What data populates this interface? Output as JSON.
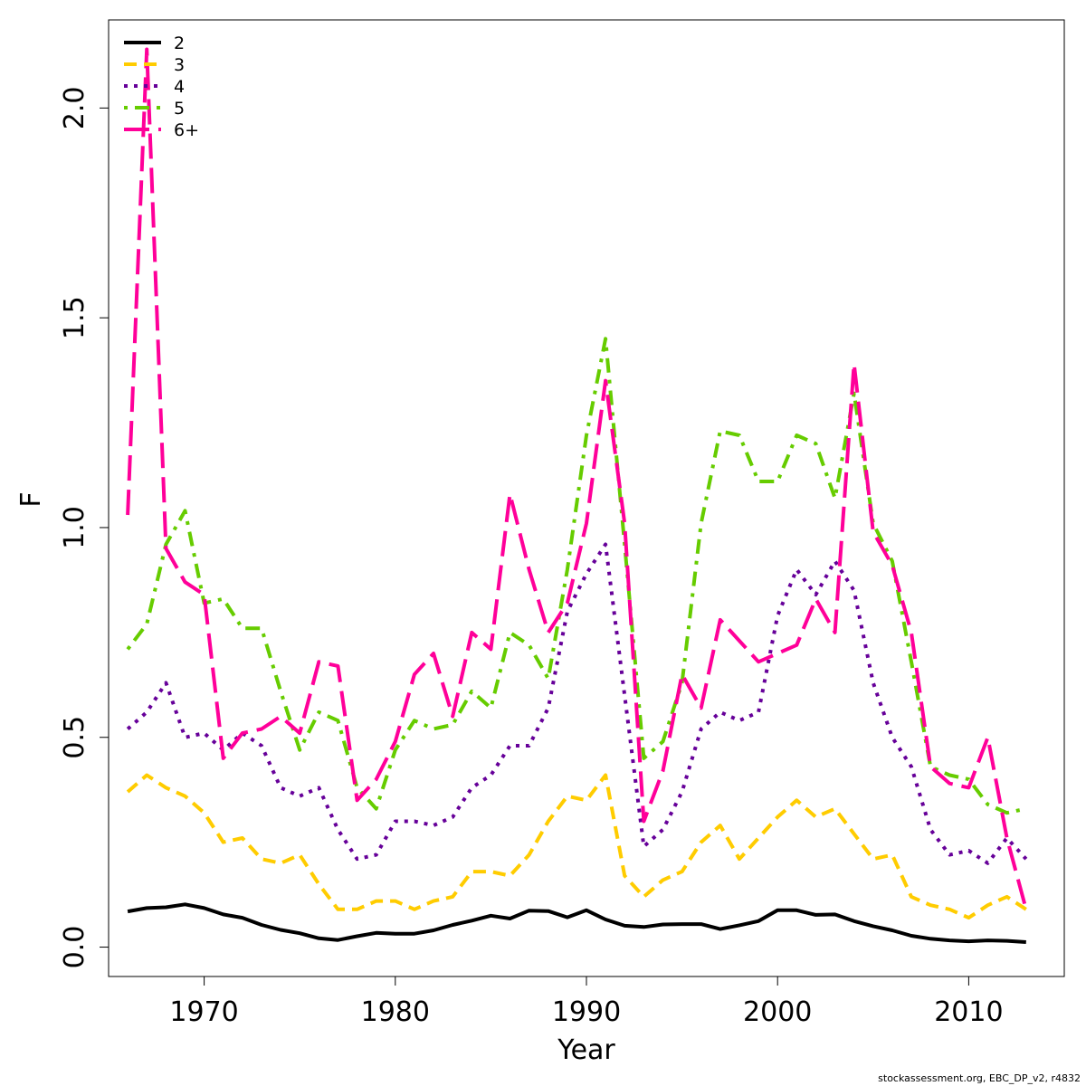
{
  "chart_data": {
    "type": "line",
    "xlabel": "Year",
    "ylabel": "F",
    "xlim": [
      1965,
      2015
    ],
    "ylim": [
      -0.07,
      2.21
    ],
    "x_ticks": [
      "1970",
      "1980",
      "1990",
      "2000",
      "2010"
    ],
    "y_ticks": [
      "0.0",
      "0.5",
      "1.0",
      "1.5",
      "2.0"
    ],
    "legend_position": "top-left",
    "x": [
      1966,
      1967,
      1968,
      1969,
      1970,
      1971,
      1972,
      1973,
      1974,
      1975,
      1976,
      1977,
      1978,
      1979,
      1980,
      1981,
      1982,
      1983,
      1984,
      1985,
      1986,
      1987,
      1988,
      1989,
      1990,
      1991,
      1992,
      1993,
      1994,
      1995,
      1996,
      1997,
      1998,
      1999,
      2000,
      2001,
      2002,
      2003,
      2004,
      2005,
      2006,
      2007,
      2008,
      2009,
      2010,
      2011,
      2012,
      2013
    ],
    "series": [
      {
        "name": "2",
        "color": "#000000",
        "dash": "solid",
        "values": [
          0.085,
          0.093,
          0.095,
          0.102,
          0.093,
          0.078,
          0.07,
          0.053,
          0.041,
          0.033,
          0.021,
          0.017,
          0.026,
          0.034,
          0.032,
          0.032,
          0.04,
          0.053,
          0.063,
          0.075,
          0.068,
          0.087,
          0.086,
          0.071,
          0.088,
          0.066,
          0.051,
          0.048,
          0.054,
          0.055,
          0.055,
          0.043,
          0.052,
          0.062,
          0.088,
          0.088,
          0.077,
          0.078,
          0.062,
          0.05,
          0.04,
          0.027,
          0.02,
          0.016,
          0.014,
          0.016,
          0.015,
          0.012
        ]
      },
      {
        "name": "3",
        "color": "#FFCC00",
        "dash": "dashed",
        "values": [
          0.37,
          0.41,
          0.38,
          0.36,
          0.32,
          0.25,
          0.26,
          0.21,
          0.2,
          0.22,
          0.15,
          0.09,
          0.09,
          0.11,
          0.11,
          0.09,
          0.11,
          0.12,
          0.18,
          0.18,
          0.17,
          0.22,
          0.3,
          0.36,
          0.35,
          0.41,
          0.17,
          0.12,
          0.16,
          0.18,
          0.25,
          0.29,
          0.21,
          0.26,
          0.31,
          0.35,
          0.31,
          0.33,
          0.27,
          0.21,
          0.22,
          0.12,
          0.1,
          0.09,
          0.07,
          0.1,
          0.12,
          0.09
        ]
      },
      {
        "name": "4",
        "color": "#660099",
        "dash": "dotted",
        "values": [
          0.52,
          0.56,
          0.63,
          0.5,
          0.51,
          0.47,
          0.51,
          0.48,
          0.38,
          0.36,
          0.38,
          0.28,
          0.21,
          0.22,
          0.3,
          0.3,
          0.29,
          0.31,
          0.38,
          0.41,
          0.48,
          0.48,
          0.57,
          0.8,
          0.89,
          0.96,
          0.6,
          0.24,
          0.28,
          0.37,
          0.52,
          0.56,
          0.54,
          0.56,
          0.79,
          0.9,
          0.84,
          0.92,
          0.85,
          0.63,
          0.5,
          0.43,
          0.28,
          0.22,
          0.23,
          0.2,
          0.26,
          0.21
        ]
      },
      {
        "name": "5",
        "color": "#66CC00",
        "dash": "dashdot",
        "values": [
          0.71,
          0.77,
          0.96,
          1.04,
          0.82,
          0.83,
          0.76,
          0.76,
          0.61,
          0.47,
          0.56,
          0.54,
          0.38,
          0.33,
          0.47,
          0.54,
          0.52,
          0.53,
          0.61,
          0.57,
          0.75,
          0.72,
          0.64,
          0.9,
          1.22,
          1.45,
          0.96,
          0.45,
          0.49,
          0.63,
          1.01,
          1.23,
          1.22,
          1.11,
          1.11,
          1.22,
          1.2,
          1.07,
          1.32,
          1.01,
          0.92,
          0.68,
          0.43,
          0.41,
          0.4,
          0.34,
          0.32,
          0.33
        ]
      },
      {
        "name": "6+",
        "color": "#FF0099",
        "dash": "longdash",
        "values": [
          1.03,
          2.14,
          0.95,
          0.87,
          0.84,
          0.45,
          0.51,
          0.52,
          0.55,
          0.51,
          0.68,
          0.67,
          0.35,
          0.4,
          0.49,
          0.65,
          0.7,
          0.55,
          0.75,
          0.71,
          1.08,
          0.9,
          0.75,
          0.82,
          1.01,
          1.35,
          1.01,
          0.3,
          0.42,
          0.65,
          0.57,
          0.78,
          0.73,
          0.68,
          0.7,
          0.72,
          0.83,
          0.75,
          1.39,
          0.99,
          0.91,
          0.75,
          0.43,
          0.39,
          0.38,
          0.5,
          0.26,
          0.09
        ]
      }
    ]
  },
  "footer": "stockassessment.org, EBC_DP_v2, r4832"
}
